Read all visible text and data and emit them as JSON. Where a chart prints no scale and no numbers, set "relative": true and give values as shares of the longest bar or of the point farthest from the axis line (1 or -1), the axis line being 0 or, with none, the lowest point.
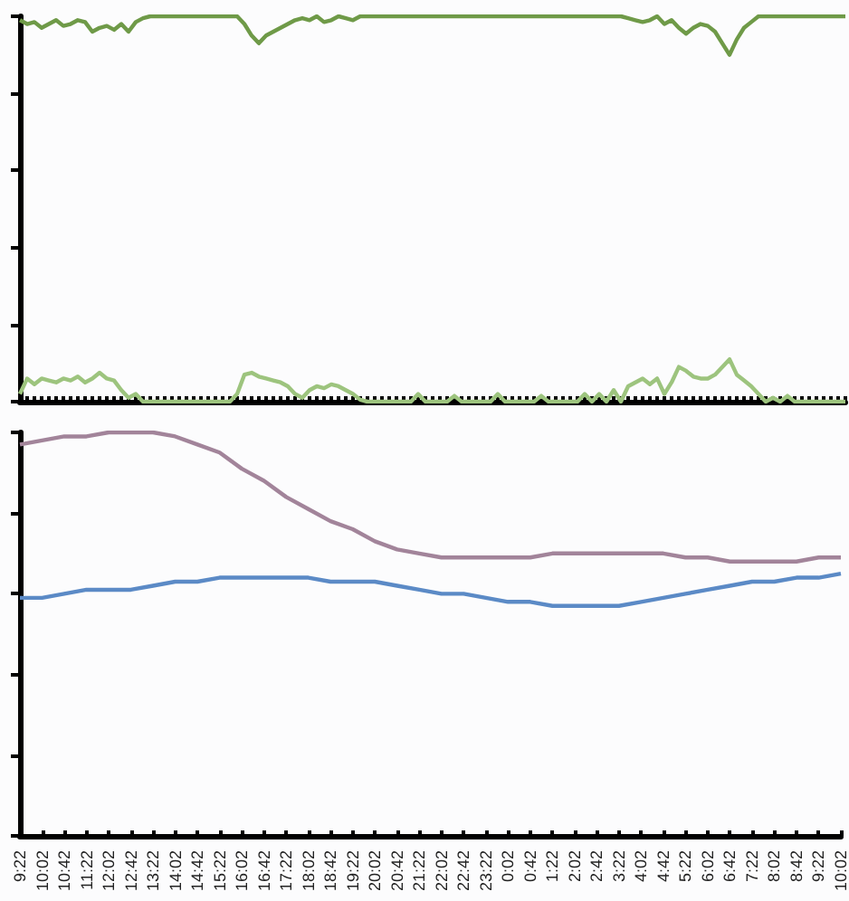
{
  "chart_data": [
    {
      "type": "line",
      "relative": true,
      "tick_labels": false,
      "marker": "none",
      "categories": [
        null,
        null,
        null,
        null,
        null,
        null,
        null,
        null,
        null,
        null,
        null,
        null,
        null,
        null,
        null,
        null,
        null,
        null,
        null,
        null,
        null,
        null,
        null,
        null,
        null,
        null,
        null,
        null,
        null,
        null,
        null,
        null,
        null,
        null,
        null,
        null,
        null,
        null,
        null,
        null,
        null,
        null,
        null,
        null,
        null,
        null,
        null,
        null,
        null,
        null,
        null,
        null,
        null,
        null,
        null,
        null,
        null,
        null,
        null,
        null,
        null,
        null,
        null,
        null,
        null,
        null,
        null,
        null,
        null,
        null,
        null,
        null,
        null,
        null,
        null,
        null,
        null,
        null,
        null,
        null,
        null,
        null,
        null,
        null,
        null,
        null,
        null,
        null,
        null,
        null,
        null,
        null,
        null,
        null,
        null,
        null,
        null,
        null,
        null,
        null,
        null,
        null,
        null,
        null,
        null,
        null,
        null,
        null,
        null,
        null,
        null,
        null,
        null,
        null,
        null
      ],
      "series": [
        {
          "color": "#6f9a48",
          "values": [
            0.99,
            0.98,
            0.985,
            0.97,
            0.98,
            0.99,
            0.975,
            0.98,
            0.99,
            0.985,
            0.96,
            0.97,
            0.975,
            0.965,
            0.98,
            0.96,
            0.985,
            0.995,
            1,
            1,
            1,
            1,
            1,
            1,
            1,
            1,
            1,
            1,
            1,
            1,
            1,
            0.98,
            0.95,
            0.93,
            0.95,
            0.96,
            0.97,
            0.98,
            0.99,
            0.995,
            0.99,
            1,
            0.985,
            0.99,
            1,
            0.995,
            0.99,
            1,
            1,
            1,
            1,
            1,
            1,
            1,
            1,
            1,
            1,
            1,
            1,
            1,
            1,
            1,
            1,
            1,
            1,
            1,
            1,
            1,
            1,
            1,
            1,
            1,
            1,
            1,
            1,
            1,
            1,
            1,
            1,
            1,
            1,
            1,
            1,
            1,
            0.995,
            0.99,
            0.985,
            0.99,
            1,
            0.98,
            0.99,
            0.97,
            0.955,
            0.97,
            0.98,
            0.975,
            0.96,
            0.93,
            0.9,
            0.94,
            0.97,
            0.985,
            1,
            1,
            1,
            1,
            1,
            1,
            1,
            1,
            1,
            1,
            1,
            1,
            1
          ]
        },
        {
          "color": "#9dc47e",
          "values": [
            0.02,
            0.06,
            0.045,
            0.06,
            0.055,
            0.05,
            0.06,
            0.055,
            0.065,
            0.05,
            0.06,
            0.075,
            0.06,
            0.055,
            0.03,
            0.01,
            0.02,
            0,
            0,
            0,
            0,
            0,
            0,
            0,
            0,
            0,
            0,
            0,
            0,
            0,
            0.02,
            0.07,
            0.075,
            0.065,
            0.06,
            0.055,
            0.05,
            0.04,
            0.02,
            0.01,
            0.03,
            0.04,
            0.035,
            0.045,
            0.04,
            0.03,
            0.02,
            0.005,
            0,
            0,
            0,
            0,
            0,
            0,
            0,
            0.02,
            0,
            0,
            0,
            0,
            0.015,
            0,
            0,
            0,
            0,
            0,
            0.02,
            0,
            0,
            0,
            0,
            0,
            0.015,
            0,
            0,
            0,
            0,
            0,
            0.02,
            0,
            0.02,
            0,
            0.03,
            0,
            0.04,
            0.05,
            0.06,
            0.045,
            0.06,
            0.02,
            0.05,
            0.09,
            0.08,
            0.065,
            0.06,
            0.06,
            0.07,
            0.09,
            0.11,
            0.07,
            0.055,
            0.04,
            0.02,
            0,
            0.01,
            0,
            0.015,
            0,
            0,
            0,
            0,
            0,
            0,
            0,
            0
          ]
        }
      ]
    },
    {
      "type": "line",
      "relative": true,
      "tick_labels": "x",
      "marker": "none",
      "categories": [
        "9:22",
        "10:02",
        "10:42",
        "11:22",
        "12:02",
        "12:42",
        "13:22",
        "14:02",
        "14:42",
        "15:22",
        "16:02",
        "16:42",
        "17:22",
        "18:02",
        "18:42",
        "19:22",
        "20:02",
        "20:42",
        "21:22",
        "22:02",
        "22:42",
        "23:22",
        "0:02",
        "0:42",
        "1:22",
        "2:02",
        "2:42",
        "3:22",
        "4:02",
        "4:42",
        "5:22",
        "6:02",
        "6:42",
        "7:22",
        "8:02",
        "8:42",
        "9:22",
        "10:02"
      ],
      "series": [
        {
          "color": "#a2849a",
          "values": [
            0.97,
            0.98,
            0.99,
            0.99,
            1,
            1,
            1,
            0.99,
            0.97,
            0.95,
            0.91,
            0.88,
            0.84,
            0.81,
            0.78,
            0.76,
            0.73,
            0.71,
            0.7,
            0.69,
            0.69,
            0.69,
            0.69,
            0.69,
            0.7,
            0.7,
            0.7,
            0.7,
            0.7,
            0.7,
            0.69,
            0.69,
            0.68,
            0.68,
            0.68,
            0.68,
            0.69,
            0.69
          ]
        },
        {
          "color": "#5b8ac6",
          "values": [
            0.59,
            0.59,
            0.6,
            0.61,
            0.61,
            0.61,
            0.62,
            0.63,
            0.63,
            0.64,
            0.64,
            0.64,
            0.64,
            0.64,
            0.63,
            0.63,
            0.63,
            0.62,
            0.61,
            0.6,
            0.6,
            0.59,
            0.58,
            0.58,
            0.57,
            0.57,
            0.57,
            0.57,
            0.58,
            0.59,
            0.6,
            0.61,
            0.62,
            0.63,
            0.63,
            0.64,
            0.64,
            0.65
          ]
        }
      ]
    }
  ]
}
